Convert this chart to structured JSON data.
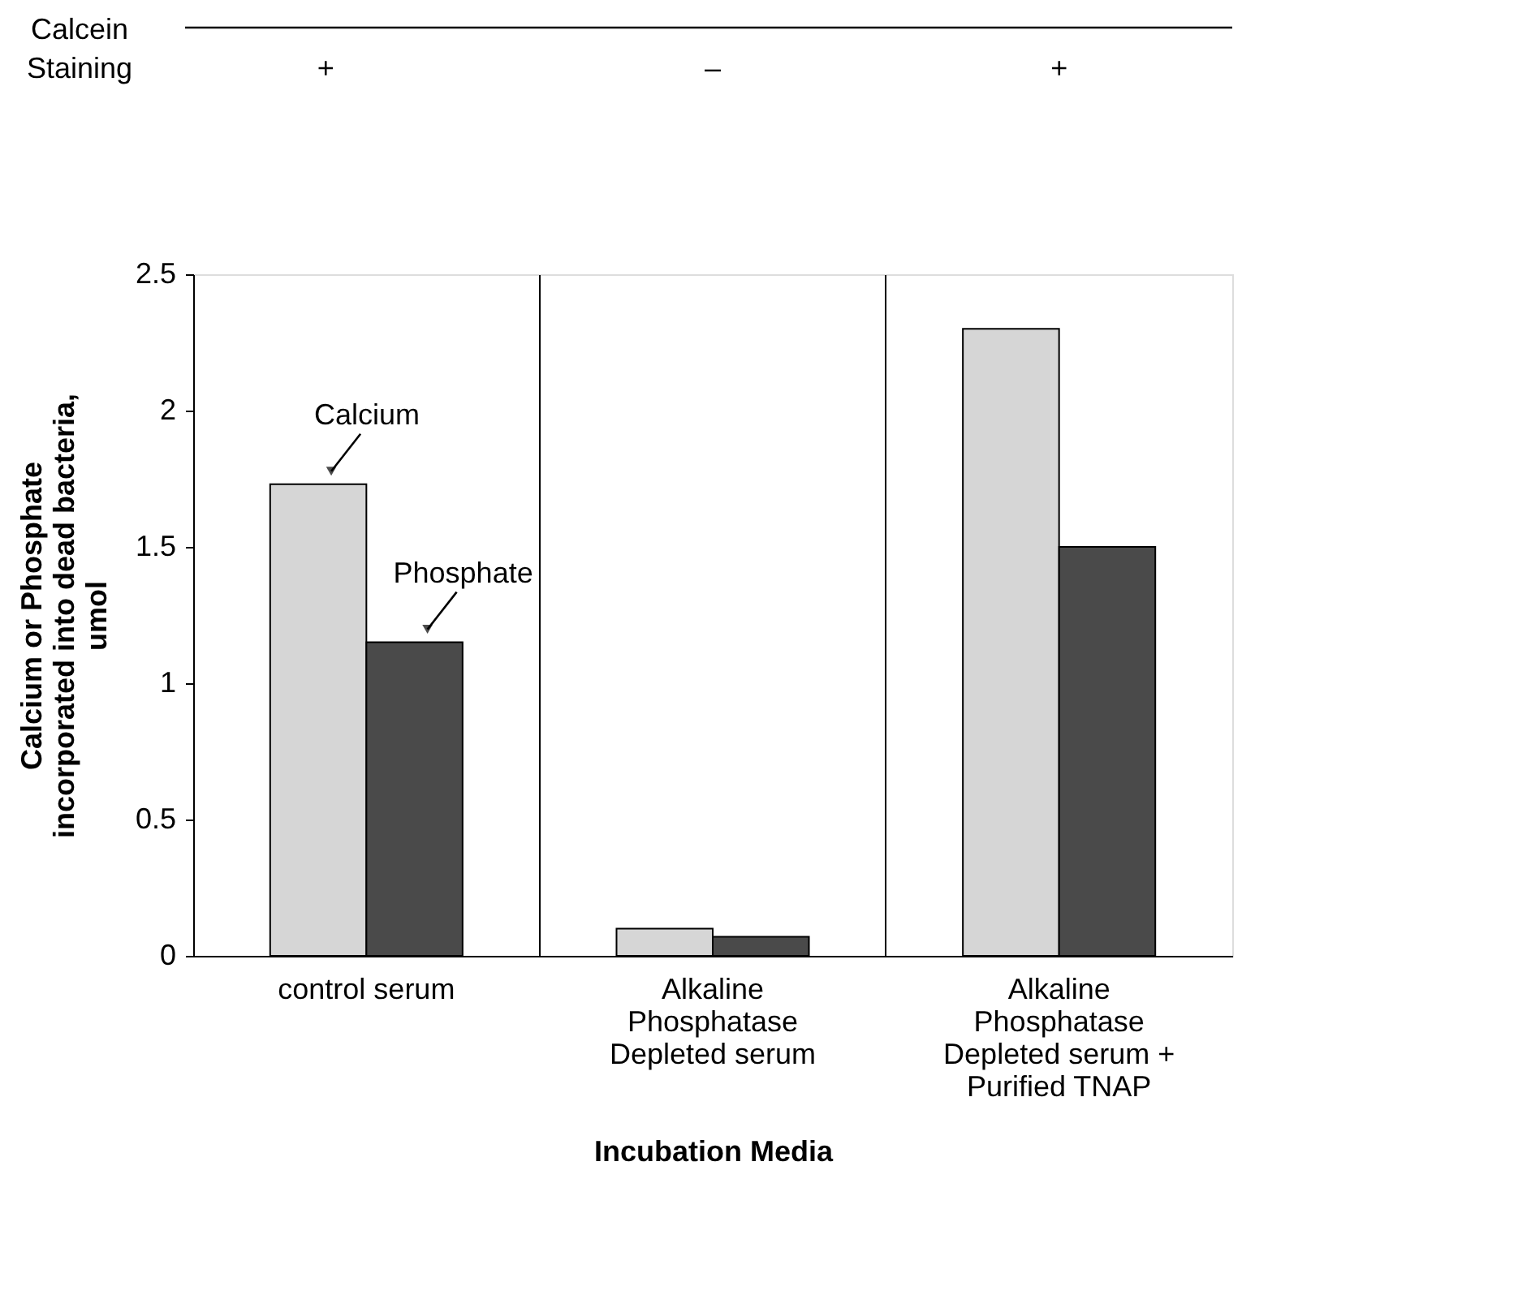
{
  "chart_data": {
    "type": "bar",
    "xlabel": "Incubation Media",
    "ylabel": "Calcium or Phosphate incorporated into dead bacteria, umol",
    "categories": [
      "control serum",
      "Alkaline Phosphatase Depleted serum",
      "Alkaline Phosphatase Depleted serum + Purified TNAP"
    ],
    "series": [
      {
        "name": "Calcium",
        "color": "#d6d6d6",
        "values": [
          1.73,
          0.1,
          2.3
        ]
      },
      {
        "name": "Phosphate",
        "color": "#4a4a4a",
        "values": [
          1.15,
          0.07,
          1.5
        ]
      }
    ],
    "ylim": [
      0,
      2.5
    ],
    "yticks": [
      0,
      0.5,
      1,
      1.5,
      2,
      2.5
    ],
    "grid": "x",
    "legend": false,
    "annotations": [
      "Calcein Staining",
      "+",
      "–",
      "+"
    ]
  }
}
